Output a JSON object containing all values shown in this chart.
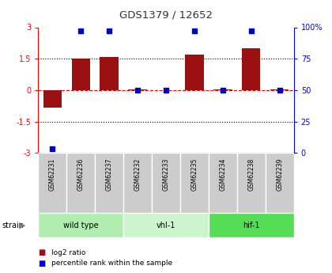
{
  "title": "GDS1379 / 12652",
  "samples": [
    "GSM62231",
    "GSM62236",
    "GSM62237",
    "GSM62232",
    "GSM62233",
    "GSM62235",
    "GSM62234",
    "GSM62238",
    "GSM62239"
  ],
  "log2_ratio": [
    -0.85,
    1.52,
    1.58,
    0.02,
    0.0,
    1.68,
    0.02,
    2.0,
    0.02
  ],
  "percentile": [
    3,
    97,
    97,
    50,
    50,
    97,
    50,
    97,
    50
  ],
  "groups": [
    {
      "label": "wild type",
      "start": 0,
      "end": 3,
      "color": "#b0eeb0"
    },
    {
      "label": "vhl-1",
      "start": 3,
      "end": 6,
      "color": "#ccf5cc"
    },
    {
      "label": "hif-1",
      "start": 6,
      "end": 9,
      "color": "#55dd55"
    }
  ],
  "bar_color": "#9b1111",
  "dot_color": "#0000cc",
  "ylim_left": [
    -3,
    3
  ],
  "ylim_right": [
    0,
    100
  ],
  "yticks_left": [
    -3,
    -1.5,
    0,
    1.5,
    3
  ],
  "ytick_labels_left": [
    "-3",
    "-1.5",
    "0",
    "1.5",
    "3"
  ],
  "yticks_right": [
    0,
    25,
    50,
    75,
    100
  ],
  "ytick_labels_right": [
    "0",
    "25",
    "50",
    "75",
    "100%"
  ],
  "legend_items": [
    {
      "color": "#9b1111",
      "label": "log2 ratio"
    },
    {
      "color": "#0000cc",
      "label": "percentile rank within the sample"
    }
  ],
  "sample_box_color": "#cccccc",
  "sample_box_edge": "#aaaaaa"
}
